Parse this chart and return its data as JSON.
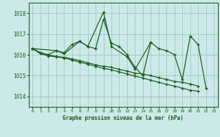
{
  "bg_color": "#cce8e8",
  "grid_color": "#99ccbb",
  "line_color": "#1a5c1a",
  "title": "Graphe pression niveau de la mer (hPa)",
  "xlim": [
    -0.5,
    23.5
  ],
  "ylim": [
    1013.5,
    1018.5
  ],
  "yticks": [
    1014,
    1015,
    1016,
    1017,
    1018
  ],
  "xticks": [
    0,
    1,
    2,
    3,
    4,
    5,
    6,
    7,
    8,
    9,
    10,
    11,
    12,
    13,
    14,
    15,
    16,
    17,
    18,
    19,
    20,
    21,
    22,
    23
  ],
  "series": [
    {
      "x": [
        0,
        1,
        2,
        3,
        4,
        5,
        6,
        7,
        8,
        9,
        10,
        11,
        12,
        13,
        14,
        15,
        16,
        17,
        18,
        19,
        20,
        21,
        22
      ],
      "y": [
        1016.3,
        1016.1,
        1016.0,
        1016.2,
        1016.1,
        1016.5,
        1016.65,
        1016.4,
        1016.3,
        1017.7,
        1016.55,
        1016.4,
        1016.0,
        1015.4,
        1015.0,
        1016.6,
        1016.3,
        1016.2,
        1016.0,
        1014.8,
        1016.9,
        1016.5,
        1014.4
      ]
    },
    {
      "x": [
        0,
        3,
        4,
        6,
        7,
        9,
        10,
        12,
        13,
        15
      ],
      "y": [
        1016.3,
        1016.2,
        1016.05,
        1016.65,
        1016.4,
        1018.05,
        1016.4,
        1015.9,
        1015.3,
        1016.6
      ]
    },
    {
      "x": [
        0,
        1,
        2,
        3,
        4,
        5,
        6,
        7,
        8,
        9,
        10,
        11,
        12,
        13,
        14,
        15,
        16,
        17,
        18,
        19,
        20,
        21
      ],
      "y": [
        1016.3,
        1016.05,
        1015.95,
        1015.9,
        1015.85,
        1015.75,
        1015.65,
        1015.55,
        1015.45,
        1015.35,
        1015.28,
        1015.18,
        1015.08,
        1014.98,
        1014.88,
        1014.78,
        1014.68,
        1014.58,
        1014.5,
        1014.4,
        1014.3,
        1014.25
      ]
    },
    {
      "x": [
        0,
        1,
        2,
        3,
        4,
        5,
        6,
        7,
        8,
        9,
        10,
        11,
        12,
        13,
        14,
        15,
        16,
        17,
        18,
        19,
        20,
        21
      ],
      "y": [
        1016.3,
        1016.1,
        1016.0,
        1015.92,
        1015.88,
        1015.8,
        1015.72,
        1015.62,
        1015.52,
        1015.45,
        1015.4,
        1015.3,
        1015.22,
        1015.12,
        1015.08,
        1015.0,
        1014.9,
        1014.82,
        1014.72,
        1014.68,
        1014.6,
        1014.5
      ]
    }
  ]
}
